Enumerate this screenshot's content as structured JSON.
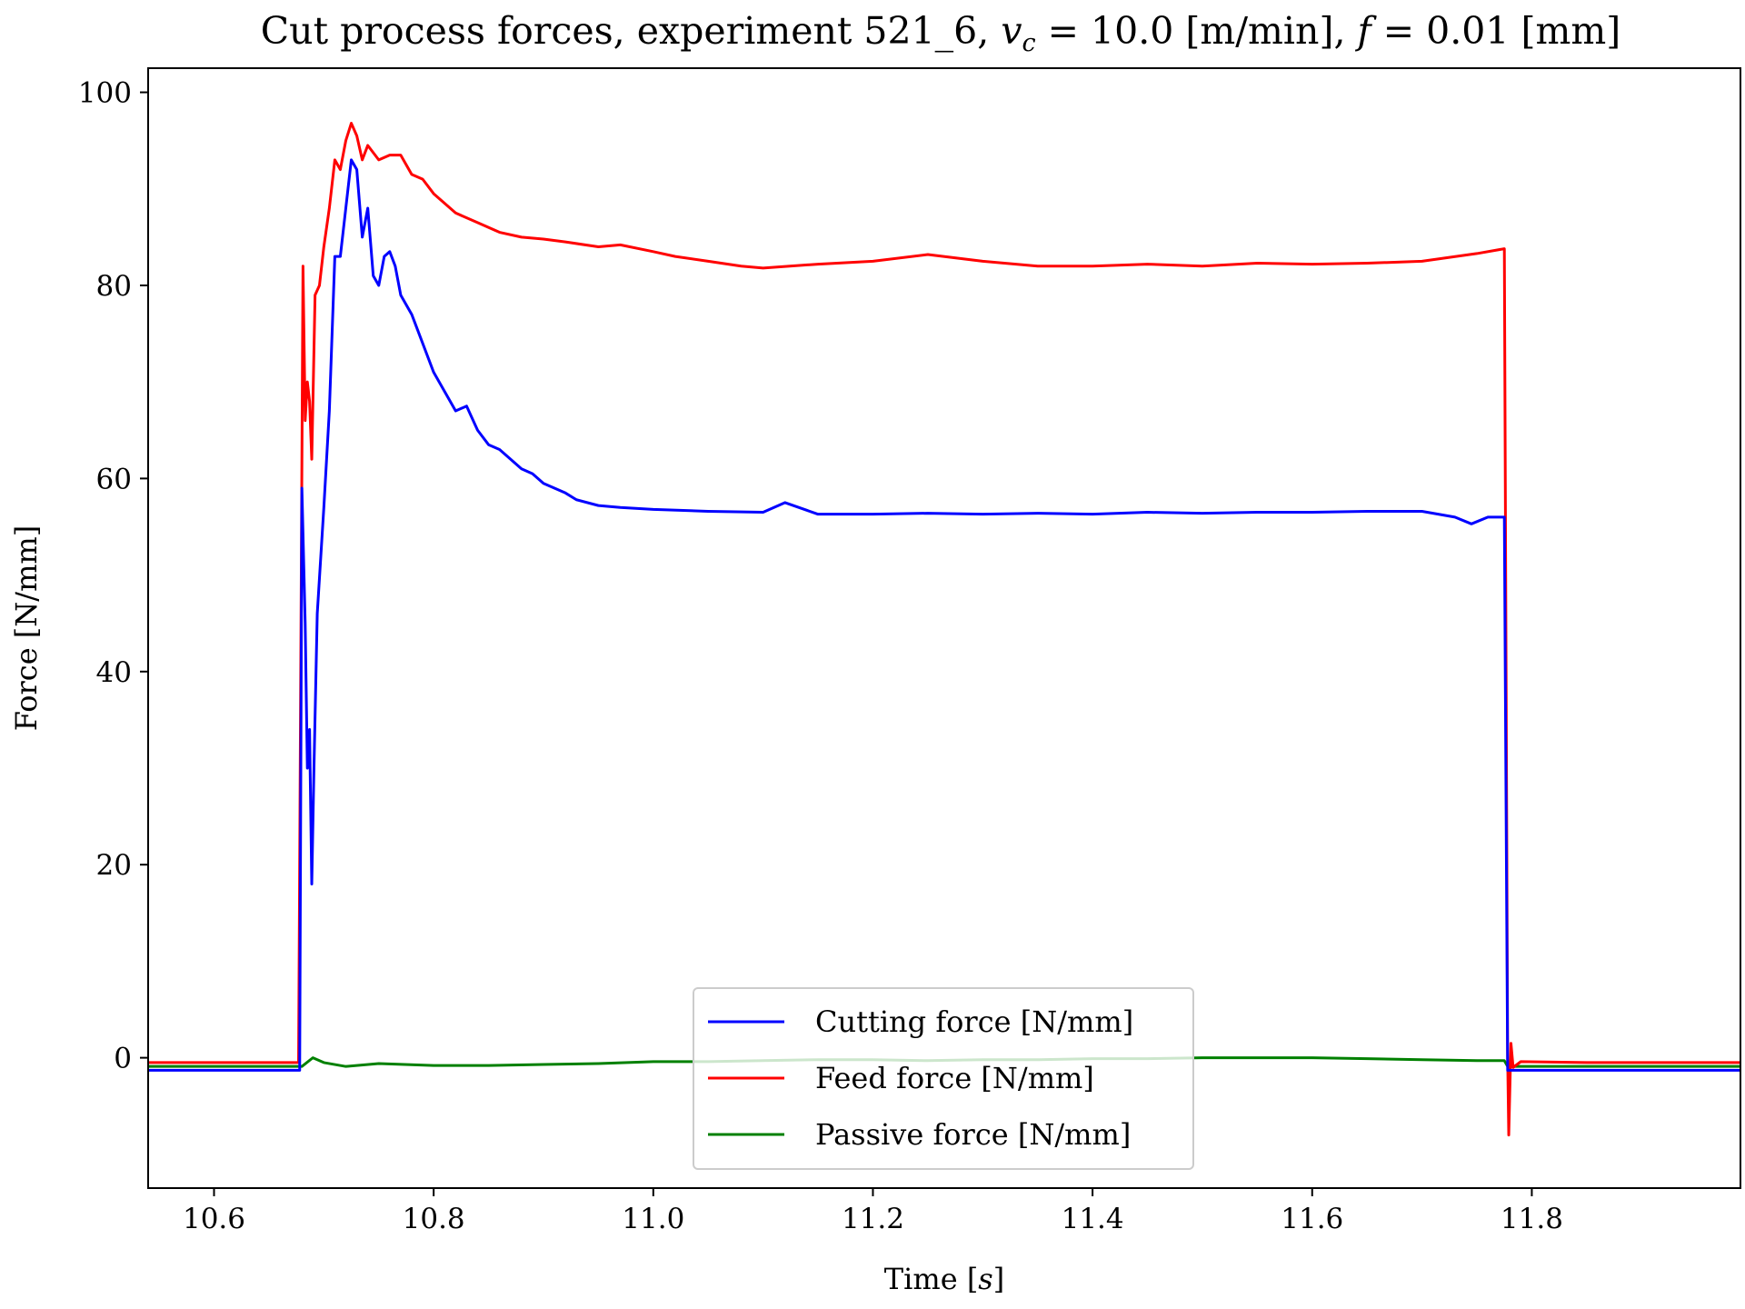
{
  "chart_data": {
    "type": "line",
    "title": "Cut process forces, experiment 521_6, v_c = 10.0 [m/min], f = 0.01 [mm]",
    "xlabel": "Time [s]",
    "ylabel": "Force [N/mm]",
    "xlim": [
      10.54,
      11.99
    ],
    "ylim": [
      -13.5,
      102.5
    ],
    "xticks": [
      10.6,
      10.8,
      11.0,
      11.2,
      11.4,
      11.6,
      11.8
    ],
    "xtick_labels": [
      "10.6",
      "10.8",
      "11.0",
      "11.2",
      "11.4",
      "11.6",
      "11.8"
    ],
    "yticks": [
      0,
      20,
      40,
      60,
      80,
      100
    ],
    "ytick_labels": [
      "0",
      "20",
      "40",
      "60",
      "80",
      "100"
    ],
    "grid": false,
    "legend_position": "lower-center",
    "series": [
      {
        "name": "Cutting force [N/mm]",
        "color": "#0000ff",
        "points": [
          [
            10.54,
            -1.3
          ],
          [
            10.6,
            -1.3
          ],
          [
            10.65,
            -1.3
          ],
          [
            10.678,
            -1.3
          ],
          [
            10.68,
            59
          ],
          [
            10.683,
            45
          ],
          [
            10.685,
            30
          ],
          [
            10.687,
            34
          ],
          [
            10.689,
            18
          ],
          [
            10.691,
            30
          ],
          [
            10.694,
            46
          ],
          [
            10.7,
            57
          ],
          [
            10.705,
            67
          ],
          [
            10.71,
            83
          ],
          [
            10.715,
            83
          ],
          [
            10.72,
            88
          ],
          [
            10.725,
            93
          ],
          [
            10.73,
            92
          ],
          [
            10.735,
            85
          ],
          [
            10.74,
            88
          ],
          [
            10.745,
            81
          ],
          [
            10.75,
            80
          ],
          [
            10.755,
            83
          ],
          [
            10.76,
            83.5
          ],
          [
            10.765,
            82
          ],
          [
            10.77,
            79
          ],
          [
            10.78,
            77
          ],
          [
            10.79,
            74
          ],
          [
            10.8,
            71
          ],
          [
            10.81,
            69
          ],
          [
            10.82,
            67
          ],
          [
            10.83,
            67.5
          ],
          [
            10.84,
            65
          ],
          [
            10.85,
            63.5
          ],
          [
            10.86,
            63
          ],
          [
            10.87,
            62
          ],
          [
            10.88,
            61
          ],
          [
            10.89,
            60.5
          ],
          [
            10.9,
            59.5
          ],
          [
            10.91,
            59
          ],
          [
            10.92,
            58.5
          ],
          [
            10.93,
            57.8
          ],
          [
            10.95,
            57.2
          ],
          [
            10.97,
            57
          ],
          [
            11.0,
            56.8
          ],
          [
            11.05,
            56.6
          ],
          [
            11.1,
            56.5
          ],
          [
            11.12,
            57.5
          ],
          [
            11.15,
            56.3
          ],
          [
            11.2,
            56.3
          ],
          [
            11.25,
            56.4
          ],
          [
            11.3,
            56.3
          ],
          [
            11.35,
            56.4
          ],
          [
            11.4,
            56.3
          ],
          [
            11.45,
            56.5
          ],
          [
            11.5,
            56.4
          ],
          [
            11.55,
            56.5
          ],
          [
            11.6,
            56.5
          ],
          [
            11.65,
            56.6
          ],
          [
            11.7,
            56.6
          ],
          [
            11.73,
            56
          ],
          [
            11.745,
            55.3
          ],
          [
            11.76,
            56
          ],
          [
            11.775,
            56
          ],
          [
            11.778,
            -1.3
          ],
          [
            11.8,
            -1.3
          ],
          [
            11.85,
            -1.3
          ],
          [
            11.9,
            -1.3
          ],
          [
            11.99,
            -1.3
          ]
        ]
      },
      {
        "name": "Feed force [N/mm]",
        "color": "#ff0000",
        "points": [
          [
            10.54,
            -0.5
          ],
          [
            10.6,
            -0.5
          ],
          [
            10.65,
            -0.5
          ],
          [
            10.677,
            -0.5
          ],
          [
            10.681,
            82
          ],
          [
            10.683,
            66
          ],
          [
            10.685,
            70
          ],
          [
            10.687,
            68
          ],
          [
            10.689,
            62
          ],
          [
            10.692,
            79
          ],
          [
            10.696,
            80
          ],
          [
            10.7,
            84
          ],
          [
            10.705,
            88
          ],
          [
            10.71,
            93
          ],
          [
            10.715,
            92
          ],
          [
            10.72,
            95
          ],
          [
            10.725,
            96.8
          ],
          [
            10.73,
            95.5
          ],
          [
            10.735,
            93
          ],
          [
            10.74,
            94.5
          ],
          [
            10.75,
            93
          ],
          [
            10.76,
            93.5
          ],
          [
            10.77,
            93.5
          ],
          [
            10.78,
            91.5
          ],
          [
            10.79,
            91
          ],
          [
            10.8,
            89.5
          ],
          [
            10.82,
            87.5
          ],
          [
            10.84,
            86.5
          ],
          [
            10.86,
            85.5
          ],
          [
            10.88,
            85
          ],
          [
            10.9,
            84.8
          ],
          [
            10.92,
            84.5
          ],
          [
            10.95,
            84
          ],
          [
            10.97,
            84.2
          ],
          [
            11.0,
            83.5
          ],
          [
            11.02,
            83
          ],
          [
            11.05,
            82.5
          ],
          [
            11.08,
            82
          ],
          [
            11.1,
            81.8
          ],
          [
            11.15,
            82.2
          ],
          [
            11.2,
            82.5
          ],
          [
            11.25,
            83.2
          ],
          [
            11.3,
            82.5
          ],
          [
            11.35,
            82
          ],
          [
            11.4,
            82
          ],
          [
            11.45,
            82.2
          ],
          [
            11.5,
            82
          ],
          [
            11.55,
            82.3
          ],
          [
            11.6,
            82.2
          ],
          [
            11.65,
            82.3
          ],
          [
            11.7,
            82.5
          ],
          [
            11.75,
            83.3
          ],
          [
            11.775,
            83.8
          ],
          [
            11.778,
            0
          ],
          [
            11.779,
            -8
          ],
          [
            11.781,
            1.5
          ],
          [
            11.783,
            -1
          ],
          [
            11.79,
            -0.4
          ],
          [
            11.85,
            -0.5
          ],
          [
            11.9,
            -0.5
          ],
          [
            11.99,
            -0.5
          ]
        ]
      },
      {
        "name": "Passive force [N/mm]",
        "color": "#008000",
        "points": [
          [
            10.54,
            -0.9
          ],
          [
            10.6,
            -0.9
          ],
          [
            10.65,
            -0.9
          ],
          [
            10.68,
            -0.9
          ],
          [
            10.69,
            0
          ],
          [
            10.7,
            -0.5
          ],
          [
            10.72,
            -0.9
          ],
          [
            10.75,
            -0.6
          ],
          [
            10.8,
            -0.8
          ],
          [
            10.85,
            -0.8
          ],
          [
            10.9,
            -0.7
          ],
          [
            10.95,
            -0.6
          ],
          [
            11.0,
            -0.4
          ],
          [
            11.05,
            -0.4
          ],
          [
            11.1,
            -0.3
          ],
          [
            11.15,
            -0.2
          ],
          [
            11.2,
            -0.2
          ],
          [
            11.25,
            -0.3
          ],
          [
            11.3,
            -0.2
          ],
          [
            11.35,
            -0.2
          ],
          [
            11.4,
            -0.1
          ],
          [
            11.45,
            -0.1
          ],
          [
            11.5,
            0
          ],
          [
            11.55,
            0
          ],
          [
            11.6,
            0
          ],
          [
            11.65,
            -0.1
          ],
          [
            11.7,
            -0.2
          ],
          [
            11.75,
            -0.3
          ],
          [
            11.775,
            -0.3
          ],
          [
            11.778,
            -0.9
          ],
          [
            11.8,
            -0.9
          ],
          [
            11.85,
            -0.9
          ],
          [
            11.9,
            -0.9
          ],
          [
            11.99,
            -0.9
          ]
        ]
      }
    ]
  }
}
